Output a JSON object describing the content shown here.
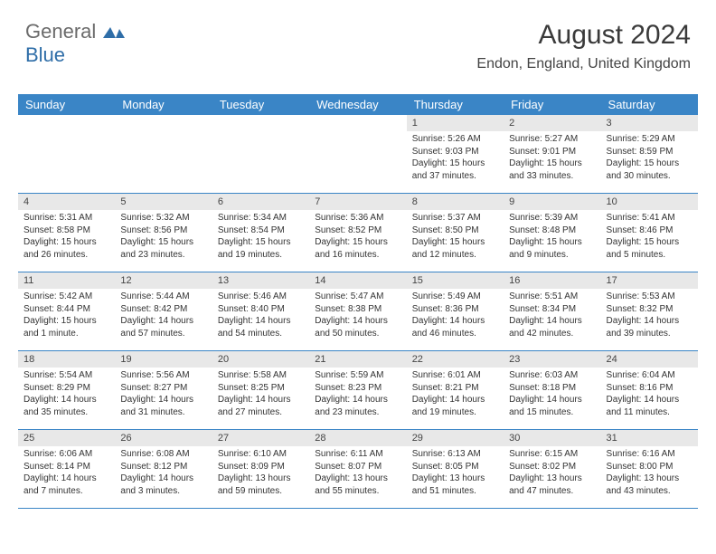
{
  "logo": {
    "text1": "General",
    "text2": "Blue",
    "shape_color": "#2f6ea8"
  },
  "header": {
    "month_year": "August 2024",
    "location": "Endon, England, United Kingdom"
  },
  "styling": {
    "header_bg": "#3a85c6",
    "header_text": "#ffffff",
    "daynum_bg": "#e8e8e8",
    "border_color": "#3a85c6",
    "body_font_size": 10,
    "title_font_size": 30,
    "location_font_size": 16,
    "dayheader_font_size": 13
  },
  "day_names": [
    "Sunday",
    "Monday",
    "Tuesday",
    "Wednesday",
    "Thursday",
    "Friday",
    "Saturday"
  ],
  "weeks": [
    [
      null,
      null,
      null,
      null,
      {
        "d": "1",
        "sr": "5:26 AM",
        "ss": "9:03 PM",
        "dl": "15 hours and 37 minutes."
      },
      {
        "d": "2",
        "sr": "5:27 AM",
        "ss": "9:01 PM",
        "dl": "15 hours and 33 minutes."
      },
      {
        "d": "3",
        "sr": "5:29 AM",
        "ss": "8:59 PM",
        "dl": "15 hours and 30 minutes."
      }
    ],
    [
      {
        "d": "4",
        "sr": "5:31 AM",
        "ss": "8:58 PM",
        "dl": "15 hours and 26 minutes."
      },
      {
        "d": "5",
        "sr": "5:32 AM",
        "ss": "8:56 PM",
        "dl": "15 hours and 23 minutes."
      },
      {
        "d": "6",
        "sr": "5:34 AM",
        "ss": "8:54 PM",
        "dl": "15 hours and 19 minutes."
      },
      {
        "d": "7",
        "sr": "5:36 AM",
        "ss": "8:52 PM",
        "dl": "15 hours and 16 minutes."
      },
      {
        "d": "8",
        "sr": "5:37 AM",
        "ss": "8:50 PM",
        "dl": "15 hours and 12 minutes."
      },
      {
        "d": "9",
        "sr": "5:39 AM",
        "ss": "8:48 PM",
        "dl": "15 hours and 9 minutes."
      },
      {
        "d": "10",
        "sr": "5:41 AM",
        "ss": "8:46 PM",
        "dl": "15 hours and 5 minutes."
      }
    ],
    [
      {
        "d": "11",
        "sr": "5:42 AM",
        "ss": "8:44 PM",
        "dl": "15 hours and 1 minute."
      },
      {
        "d": "12",
        "sr": "5:44 AM",
        "ss": "8:42 PM",
        "dl": "14 hours and 57 minutes."
      },
      {
        "d": "13",
        "sr": "5:46 AM",
        "ss": "8:40 PM",
        "dl": "14 hours and 54 minutes."
      },
      {
        "d": "14",
        "sr": "5:47 AM",
        "ss": "8:38 PM",
        "dl": "14 hours and 50 minutes."
      },
      {
        "d": "15",
        "sr": "5:49 AM",
        "ss": "8:36 PM",
        "dl": "14 hours and 46 minutes."
      },
      {
        "d": "16",
        "sr": "5:51 AM",
        "ss": "8:34 PM",
        "dl": "14 hours and 42 minutes."
      },
      {
        "d": "17",
        "sr": "5:53 AM",
        "ss": "8:32 PM",
        "dl": "14 hours and 39 minutes."
      }
    ],
    [
      {
        "d": "18",
        "sr": "5:54 AM",
        "ss": "8:29 PM",
        "dl": "14 hours and 35 minutes."
      },
      {
        "d": "19",
        "sr": "5:56 AM",
        "ss": "8:27 PM",
        "dl": "14 hours and 31 minutes."
      },
      {
        "d": "20",
        "sr": "5:58 AM",
        "ss": "8:25 PM",
        "dl": "14 hours and 27 minutes."
      },
      {
        "d": "21",
        "sr": "5:59 AM",
        "ss": "8:23 PM",
        "dl": "14 hours and 23 minutes."
      },
      {
        "d": "22",
        "sr": "6:01 AM",
        "ss": "8:21 PM",
        "dl": "14 hours and 19 minutes."
      },
      {
        "d": "23",
        "sr": "6:03 AM",
        "ss": "8:18 PM",
        "dl": "14 hours and 15 minutes."
      },
      {
        "d": "24",
        "sr": "6:04 AM",
        "ss": "8:16 PM",
        "dl": "14 hours and 11 minutes."
      }
    ],
    [
      {
        "d": "25",
        "sr": "6:06 AM",
        "ss": "8:14 PM",
        "dl": "14 hours and 7 minutes."
      },
      {
        "d": "26",
        "sr": "6:08 AM",
        "ss": "8:12 PM",
        "dl": "14 hours and 3 minutes."
      },
      {
        "d": "27",
        "sr": "6:10 AM",
        "ss": "8:09 PM",
        "dl": "13 hours and 59 minutes."
      },
      {
        "d": "28",
        "sr": "6:11 AM",
        "ss": "8:07 PM",
        "dl": "13 hours and 55 minutes."
      },
      {
        "d": "29",
        "sr": "6:13 AM",
        "ss": "8:05 PM",
        "dl": "13 hours and 51 minutes."
      },
      {
        "d": "30",
        "sr": "6:15 AM",
        "ss": "8:02 PM",
        "dl": "13 hours and 47 minutes."
      },
      {
        "d": "31",
        "sr": "6:16 AM",
        "ss": "8:00 PM",
        "dl": "13 hours and 43 minutes."
      }
    ]
  ],
  "labels": {
    "sunrise": "Sunrise:",
    "sunset": "Sunset:",
    "daylight": "Daylight:"
  }
}
